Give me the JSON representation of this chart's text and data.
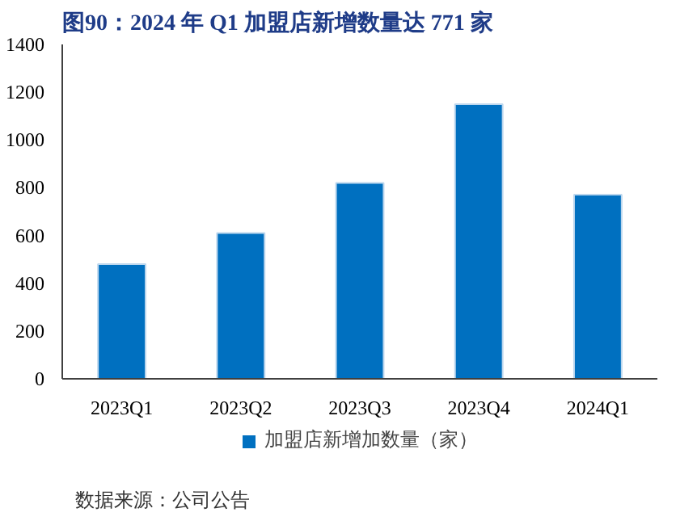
{
  "chart_data": {
    "type": "bar",
    "title": "图90：2024 年 Q1 加盟店新增数量达 771 家",
    "categories": [
      "2023Q1",
      "2023Q2",
      "2023Q3",
      "2023Q4",
      "2024Q1"
    ],
    "series": [
      {
        "name": "加盟店新增加数量（家）",
        "color": "#0070c0",
        "values": [
          480,
          610,
          820,
          1150,
          771
        ]
      }
    ],
    "ylim": [
      0,
      1400
    ],
    "yticks": [
      0,
      200,
      400,
      600,
      800,
      1000,
      1200,
      1400
    ],
    "grid": false,
    "legend": "bottom",
    "annotations": [
      "数据来源：公司公告"
    ]
  }
}
